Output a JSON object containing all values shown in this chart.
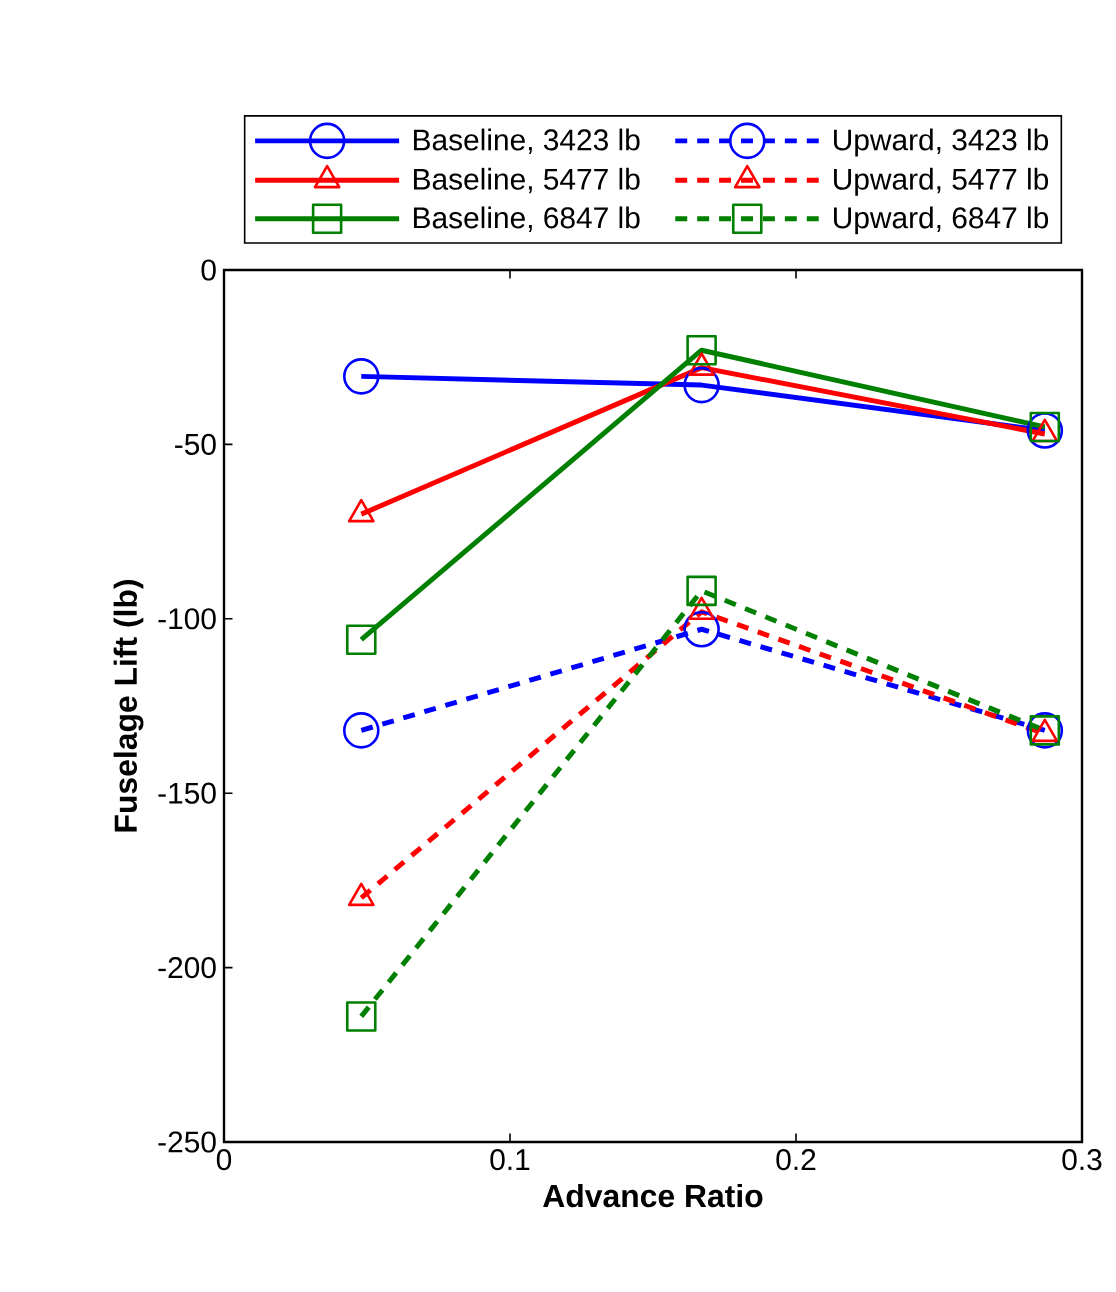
{
  "chart_data": {
    "type": "line",
    "xlabel": "Advance Ratio",
    "ylabel": "Fuselage Lift (lb)",
    "xlim": [
      0,
      0.3
    ],
    "xticks": [
      0,
      0.1,
      0.2,
      0.3
    ],
    "ylim": [
      -250,
      0
    ],
    "yticks": [
      -250,
      -200,
      -150,
      -100,
      -50,
      0
    ],
    "legend": "top",
    "x": [
      0.048,
      0.167,
      0.287
    ],
    "series": [
      {
        "name": "Baseline, 3423 lb",
        "color": "#0000ff",
        "marker": "circle",
        "line_style": "solid",
        "values": [
          -30.5,
          -33,
          -46
        ]
      },
      {
        "name": "Upward, 3423 lb",
        "color": "#0000ff",
        "marker": "circle",
        "line_style": "dashed",
        "values": [
          -132,
          -103,
          -132
        ]
      },
      {
        "name": "Baseline, 5477 lb",
        "color": "#ff0000",
        "marker": "triangle",
        "line_style": "solid",
        "values": [
          -70,
          -28,
          -47
        ]
      },
      {
        "name": "Upward, 5477 lb",
        "color": "#ff0000",
        "marker": "triangle",
        "line_style": "dashed",
        "values": [
          -180,
          -98,
          -133
        ]
      },
      {
        "name": "Baseline, 6847 lb",
        "color": "#008000",
        "marker": "square",
        "line_style": "solid",
        "values": [
          -106,
          -23,
          -45
        ]
      },
      {
        "name": "Upward, 6847 lb",
        "color": "#008000",
        "marker": "square",
        "line_style": "dashed",
        "values": [
          -214,
          -92,
          -132
        ]
      }
    ]
  }
}
